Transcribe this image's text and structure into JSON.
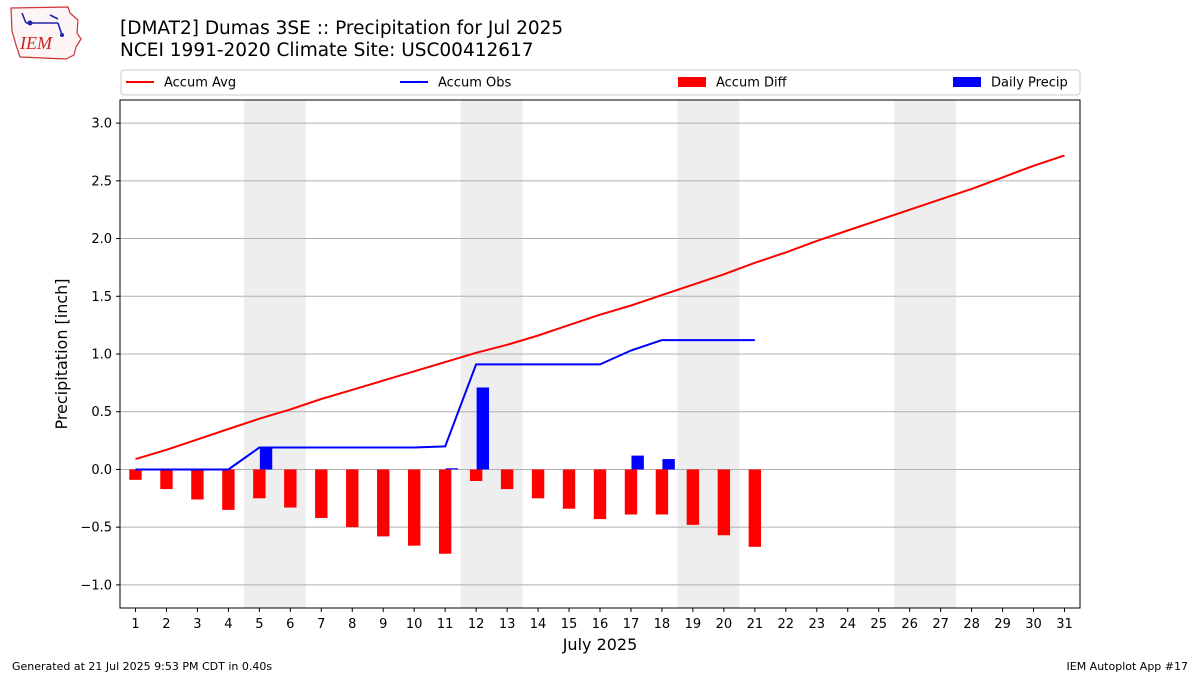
{
  "header": {
    "title_line1": "[DMAT2] Dumas 3SE :: Precipitation for Jul 2025",
    "title_line2": "NCEI 1991-2020 Climate Site: USC00412617",
    "logo_text": "IEM"
  },
  "footer": {
    "left": "Generated at 21 Jul 2025 9:53 PM CDT in 0.40s",
    "right": "IEM Autoplot App #17"
  },
  "colors": {
    "avg": "#ff0000",
    "obs": "#0000ff",
    "diff": "#ff0000",
    "daily": "#0000ff",
    "weekend": "#eeeeee",
    "grid": "#b0b0b0"
  },
  "chart_data": {
    "type": "bar",
    "title": "[DMAT2] Dumas 3SE :: Precipitation for Jul 2025",
    "subtitle": "NCEI 1991-2020 Climate Site: USC00412617",
    "xlabel": "July 2025",
    "ylabel": "Precipitation [inch]",
    "ylim": [
      -1.2,
      3.2
    ],
    "yticks": [
      -1.0,
      -0.5,
      0.0,
      0.5,
      1.0,
      1.5,
      2.0,
      2.5,
      3.0
    ],
    "ytick_labels": [
      "−1.0",
      "−0.5",
      "0.0",
      "0.5",
      "1.0",
      "1.5",
      "2.0",
      "2.5",
      "3.0"
    ],
    "xticks": [
      1,
      2,
      3,
      4,
      5,
      6,
      7,
      8,
      9,
      10,
      11,
      12,
      13,
      14,
      15,
      16,
      17,
      18,
      19,
      20,
      21,
      22,
      23,
      24,
      25,
      26,
      27,
      28,
      29,
      30,
      31
    ],
    "grid": "horizontal",
    "legend_position": "top",
    "weekend_shading": [
      [
        5,
        6
      ],
      [
        12,
        13
      ],
      [
        19,
        20
      ],
      [
        26,
        27
      ]
    ],
    "legend": [
      "Accum Avg",
      "Accum Obs",
      "Accum Diff",
      "Daily Precip"
    ],
    "series": [
      {
        "name": "Accum Avg",
        "type": "line",
        "color": "#ff0000",
        "x": [
          1,
          2,
          3,
          4,
          5,
          6,
          7,
          8,
          9,
          10,
          11,
          12,
          13,
          14,
          15,
          16,
          17,
          18,
          19,
          20,
          21,
          22,
          23,
          24,
          25,
          26,
          27,
          28,
          29,
          30,
          31
        ],
        "values": [
          0.09,
          0.17,
          0.26,
          0.35,
          0.44,
          0.52,
          0.61,
          0.69,
          0.77,
          0.85,
          0.93,
          1.01,
          1.08,
          1.16,
          1.25,
          1.34,
          1.42,
          1.51,
          1.6,
          1.69,
          1.79,
          1.88,
          1.98,
          2.07,
          2.16,
          2.25,
          2.34,
          2.43,
          2.53,
          2.63,
          2.72
        ]
      },
      {
        "name": "Accum Obs",
        "type": "line",
        "color": "#0000ff",
        "x": [
          1,
          2,
          3,
          4,
          5,
          6,
          7,
          8,
          9,
          10,
          11,
          12,
          13,
          14,
          15,
          16,
          17,
          18,
          19,
          20,
          21
        ],
        "values": [
          0.0,
          0.0,
          0.0,
          0.0,
          0.19,
          0.19,
          0.19,
          0.19,
          0.19,
          0.19,
          0.2,
          0.91,
          0.91,
          0.91,
          0.91,
          0.91,
          1.03,
          1.12,
          1.12,
          1.12,
          1.12
        ]
      },
      {
        "name": "Accum Diff",
        "type": "bar",
        "color": "#ff0000",
        "x": [
          1,
          2,
          3,
          4,
          5,
          6,
          7,
          8,
          9,
          10,
          11,
          12,
          13,
          14,
          15,
          16,
          17,
          18,
          19,
          20,
          21
        ],
        "values": [
          -0.09,
          -0.17,
          -0.26,
          -0.35,
          -0.25,
          -0.33,
          -0.42,
          -0.5,
          -0.58,
          -0.66,
          -0.73,
          -0.1,
          -0.17,
          -0.25,
          -0.34,
          -0.43,
          -0.39,
          -0.39,
          -0.48,
          -0.57,
          -0.67
        ]
      },
      {
        "name": "Daily Precip",
        "type": "bar",
        "color": "#0000ff",
        "x": [
          1,
          2,
          3,
          4,
          5,
          6,
          7,
          8,
          9,
          10,
          11,
          12,
          13,
          14,
          15,
          16,
          17,
          18,
          19,
          20,
          21
        ],
        "values": [
          0,
          0,
          0,
          0,
          0.19,
          0,
          0,
          0,
          0,
          0,
          0.01,
          0.71,
          0,
          0,
          0,
          0,
          0.12,
          0.09,
          0,
          0,
          0
        ]
      }
    ]
  }
}
